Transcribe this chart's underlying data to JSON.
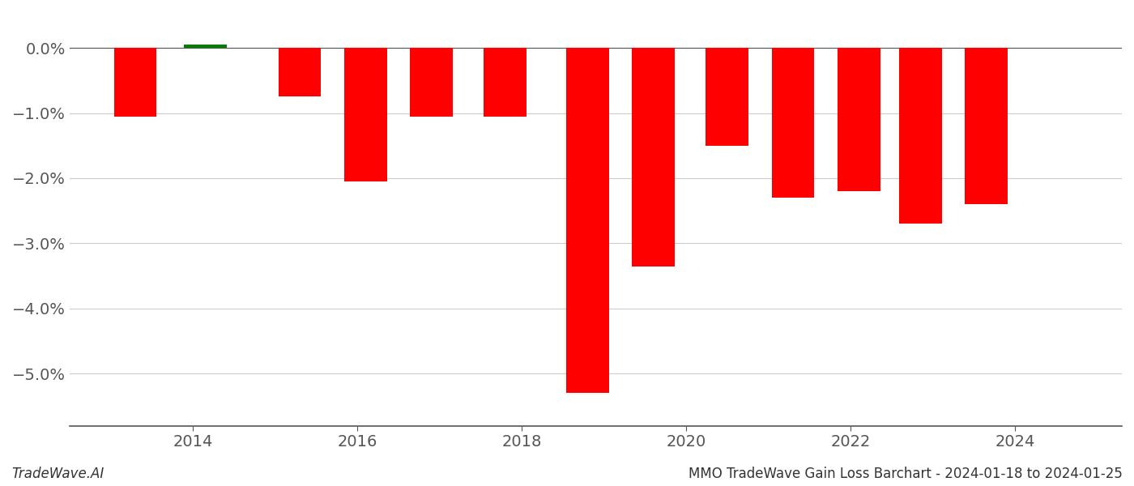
{
  "x_positions": [
    2013.3,
    2014.15,
    2015.3,
    2016.1,
    2016.9,
    2017.8,
    2018.8,
    2019.6,
    2020.5,
    2021.3,
    2022.1,
    2022.85,
    2023.65
  ],
  "values": [
    -0.0105,
    0.0005,
    -0.0075,
    -0.0205,
    -0.0105,
    -0.0105,
    -0.053,
    -0.0335,
    -0.015,
    -0.023,
    -0.022,
    -0.027,
    -0.024
  ],
  "bar_colors": [
    "#ff0000",
    "#008000",
    "#ff0000",
    "#ff0000",
    "#ff0000",
    "#ff0000",
    "#ff0000",
    "#ff0000",
    "#ff0000",
    "#ff0000",
    "#ff0000",
    "#ff0000",
    "#ff0000"
  ],
  "bar_width": 0.52,
  "ylim": [
    -0.058,
    0.004
  ],
  "xlim": [
    2012.5,
    2025.3
  ],
  "xticks": [
    2014,
    2016,
    2018,
    2020,
    2022,
    2024
  ],
  "yticks": [
    0.0,
    -0.01,
    -0.02,
    -0.03,
    -0.04,
    -0.05
  ],
  "ytick_labels": [
    "0.0%",
    "−1.0%",
    "−2.0%",
    "−3.0%",
    "−4.0%",
    "−5.0%"
  ],
  "footer_left": "TradeWave.AI",
  "footer_right": "MMO TradeWave Gain Loss Barchart - 2024-01-18 to 2024-01-25",
  "background_color": "#ffffff",
  "grid_color": "#cccccc",
  "axis_color": "#555555",
  "tick_fontsize": 14,
  "footer_fontsize": 12
}
